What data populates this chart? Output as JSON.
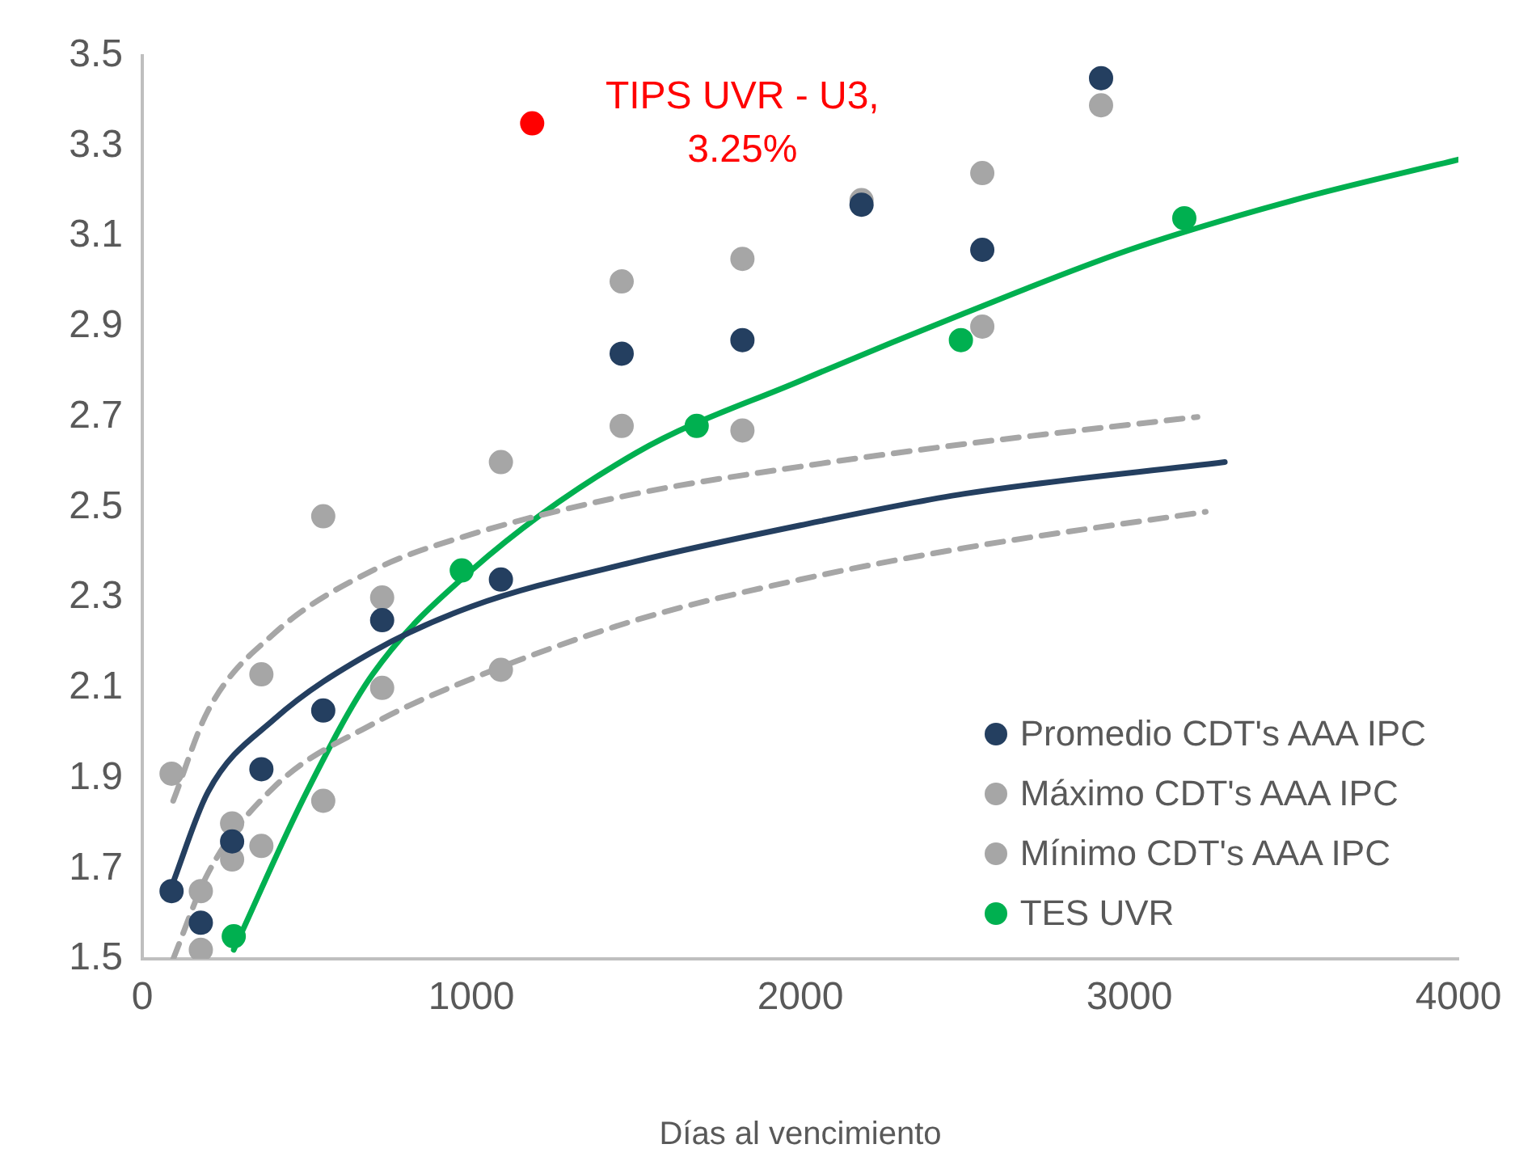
{
  "chart_data": {
    "type": "scatter",
    "xlabel": "Días al vencimiento",
    "xlim": [
      0,
      4000
    ],
    "xticks": [
      0,
      1000,
      2000,
      3000,
      4000
    ],
    "ylim": [
      1.5,
      3.5
    ],
    "yticks": [
      1.5,
      1.7,
      1.9,
      2.1,
      2.3,
      2.5,
      2.7,
      2.9,
      3.1,
      3.3,
      3.5
    ],
    "grid": false,
    "legend": "bottom right",
    "marker": "circle",
    "series": [
      {
        "name": "Promedio CDT's AAA IPC",
        "color": "#243f60",
        "x": [
          89,
          178,
          273,
          362,
          550,
          729,
          1090,
          1457,
          1824,
          2186,
          2553,
          2914
        ],
        "values": [
          1.65,
          1.58,
          1.76,
          1.92,
          2.05,
          2.25,
          2.34,
          2.84,
          2.87,
          3.17,
          3.07,
          3.45
        ]
      },
      {
        "name": "Máximo CDT's AAA IPC",
        "color": "#a6a6a6",
        "x": [
          89,
          178,
          273,
          362,
          550,
          729,
          1090,
          1457,
          1824,
          2186,
          2553,
          2914
        ],
        "values": [
          1.91,
          1.65,
          1.8,
          2.13,
          2.48,
          2.3,
          2.6,
          3.0,
          3.05,
          3.18,
          3.24,
          3.39
        ]
      },
      {
        "name": "Mínimo CDT's AAA IPC",
        "color": "#a6a6a6",
        "x": [
          178,
          273,
          362,
          550,
          729,
          1090,
          1457,
          1824,
          2553
        ],
        "values": [
          1.52,
          1.72,
          1.75,
          1.85,
          2.1,
          2.14,
          2.68,
          2.67,
          2.9
        ]
      },
      {
        "name": "TES UVR",
        "color": "#00b050",
        "x": [
          278,
          971,
          1685,
          2488,
          3167
        ],
        "values": [
          1.55,
          2.36,
          2.68,
          2.87,
          3.14
        ]
      },
      {
        "color": "#ff0000",
        "x": [
          1185
        ],
        "values": [
          3.35
        ]
      },
      {
        "type": "line",
        "color": "#243f60",
        "marker": "none",
        "line_style": "solid",
        "x": [
          89,
          200,
          400,
          700,
          1000,
          1500,
          2000,
          2500,
          3290
        ],
        "values": [
          1.66,
          1.87,
          2.03,
          2.18,
          2.28,
          2.38,
          2.46,
          2.53,
          2.6
        ]
      },
      {
        "type": "line",
        "color": "#a6a6a6",
        "marker": "none",
        "line_style": "dashed",
        "x": [
          94,
          200,
          400,
          700,
          1000,
          1500,
          2000,
          2500,
          3207
        ],
        "values": [
          1.85,
          2.05,
          2.22,
          2.36,
          2.44,
          2.53,
          2.59,
          2.64,
          2.7
        ]
      },
      {
        "type": "line",
        "color": "#a6a6a6",
        "marker": "none",
        "line_style": "dashed",
        "x": [
          94,
          200,
          400,
          700,
          1000,
          1500,
          2000,
          2500,
          3232
        ],
        "values": [
          1.5,
          1.69,
          1.88,
          2.02,
          2.12,
          2.25,
          2.34,
          2.41,
          2.49
        ]
      },
      {
        "type": "line",
        "color": "#00b050",
        "marker": "none",
        "line_style": "solid",
        "x": [
          278,
          500,
          700,
          1000,
          1500,
          2000,
          2500,
          3000,
          3500,
          4000
        ],
        "values": [
          1.52,
          1.87,
          2.13,
          2.36,
          2.62,
          2.78,
          2.93,
          3.07,
          3.18,
          3.27
        ]
      }
    ],
    "annotations": [
      {
        "text": "TIPS UVR - U3, 3.25%",
        "x": 1185,
        "y": 3.35
      }
    ]
  }
}
